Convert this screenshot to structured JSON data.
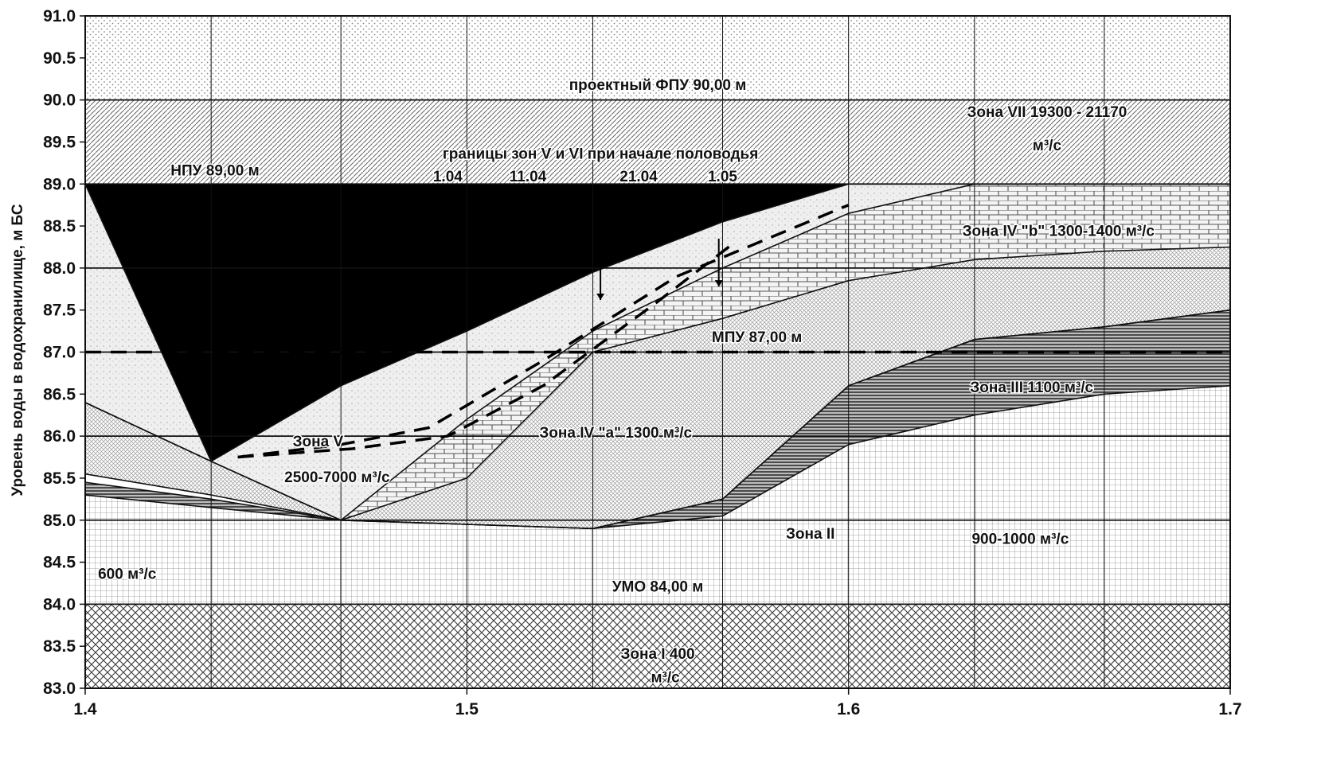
{
  "chart_data": {
    "type": "area",
    "title": "",
    "xlabel": "",
    "ylabel": "Уровень воды в водохранилище, м БС",
    "xlim": [
      1.4,
      1.7
    ],
    "ylim": [
      83.0,
      91.0
    ],
    "x_ticks": [
      "1.4",
      "1.5",
      "1.6",
      "1.7"
    ],
    "y_ticks": [
      "83.0",
      "83.5",
      "84.0",
      "84.5",
      "85.0",
      "85.5",
      "86.0",
      "86.5",
      "87.0",
      "87.5",
      "88.0",
      "88.5",
      "89.0",
      "89.5",
      "90.0",
      "90.5",
      "91.0"
    ],
    "grid": true,
    "x_breaks": [
      1.4,
      1.433,
      1.467,
      1.5,
      1.533,
      1.567,
      1.6,
      1.633,
      1.667,
      1.7
    ],
    "boundaries": [
      {
        "id": "zone2_top_a",
        "y": [
          85.3,
          85.15,
          85.0,
          84.95,
          84.9,
          85.05,
          85.9,
          86.25,
          86.5,
          86.6
        ]
      },
      {
        "id": "zone2_top_b",
        "y": [
          85.45,
          85.25,
          85.0,
          84.95,
          84.9,
          85.25,
          86.6,
          87.15,
          87.3,
          87.5
        ]
      },
      {
        "id": "zone4a_bottom",
        "y": [
          85.55,
          85.3,
          85.0,
          84.95,
          84.9,
          85.25,
          86.6,
          87.15,
          87.3,
          87.5
        ]
      },
      {
        "id": "zone4a_top",
        "y": [
          86.4,
          85.7,
          85.0,
          85.5,
          87.0,
          87.4,
          87.85,
          88.1,
          88.2,
          88.25
        ]
      },
      {
        "id": "zone4b_top",
        "y": [
          86.4,
          85.7,
          85.0,
          86.2,
          87.25,
          88.0,
          88.65,
          89.0,
          89.0,
          89.0
        ]
      },
      {
        "id": "zone5_top",
        "y": [
          89.0,
          85.7,
          86.6,
          87.25,
          87.95,
          88.55,
          89.0,
          89.0,
          89.0,
          89.0
        ]
      }
    ],
    "dashed_lines": [
      {
        "x": [
          1.4,
          1.7
        ],
        "y": [
          87.0,
          87.0
        ]
      },
      {
        "x": [
          1.44,
          1.467,
          1.49,
          1.52,
          1.555,
          1.6
        ],
        "y": [
          85.75,
          85.9,
          86.1,
          86.9,
          87.9,
          88.75
        ]
      },
      {
        "x": [
          1.44,
          1.47,
          1.495,
          1.52,
          1.55,
          1.57
        ],
        "y": [
          85.75,
          85.85,
          86.0,
          86.6,
          87.6,
          88.3
        ]
      }
    ],
    "bands": [
      {
        "y0": 83.0,
        "y1": 84.0,
        "name": "Зона I"
      },
      {
        "y0": 89.0,
        "y1": 90.0,
        "name": "Зона VII"
      },
      {
        "y0": 90.0,
        "y1": 91.0,
        "name": "проектный ФПУ"
      }
    ],
    "annotations": [
      {
        "text": "проектный ФПУ 90,00 м",
        "x": 1.55,
        "y": 90.12
      },
      {
        "text": "Зона VII 19300 - 21170",
        "x": 1.652,
        "y": 89.8
      },
      {
        "text": "м³/с",
        "x": 1.652,
        "y": 89.4
      },
      {
        "text": "НПУ 89,00 м",
        "x": 1.434,
        "y": 89.1
      },
      {
        "text": "границы зон V и VI при начале половодья",
        "x": 1.535,
        "y": 89.3
      },
      {
        "text": "1.04",
        "x": 1.495,
        "y": 89.03
      },
      {
        "text": "11.04",
        "x": 1.516,
        "y": 89.03
      },
      {
        "text": "21.04",
        "x": 1.545,
        "y": 89.03
      },
      {
        "text": "1.05",
        "x": 1.567,
        "y": 89.03
      },
      {
        "text": "Зона IV \"b\"   1300-1400 м³/с",
        "x": 1.655,
        "y": 88.38
      },
      {
        "text": "МПУ 87,00 м",
        "x": 1.576,
        "y": 87.12
      },
      {
        "text": "Зона III 1100 м³/с",
        "x": 1.648,
        "y": 86.52
      },
      {
        "text": "Зона V",
        "x": 1.461,
        "y": 85.88
      },
      {
        "text": "2500-7000 м³/с",
        "x": 1.466,
        "y": 85.45
      },
      {
        "text": "Зона IV \"а\"  1300 м³/с",
        "x": 1.539,
        "y": 85.98
      },
      {
        "text": "Зона II",
        "x": 1.59,
        "y": 84.78
      },
      {
        "text": "900-1000 м³/с",
        "x": 1.645,
        "y": 84.72
      },
      {
        "text": "600 м³/с",
        "x": 1.411,
        "y": 84.3
      },
      {
        "text": "УМО 84,00 м",
        "x": 1.55,
        "y": 84.15
      },
      {
        "text": "Зона I      400",
        "x": 1.55,
        "y": 83.35
      },
      {
        "text": "м³/с",
        "x": 1.552,
        "y": 83.07
      }
    ],
    "colors": {
      "zone1": "#3a3a3a",
      "zone2": "#8c8c8c",
      "zone3": "#1a1a1a",
      "zone4a": "#9a9a9a",
      "zone4b": "#555555",
      "zone5": "#efefef",
      "zone6": "#000000",
      "zone7": "#666666",
      "fpu": "#8a8a8a"
    }
  }
}
